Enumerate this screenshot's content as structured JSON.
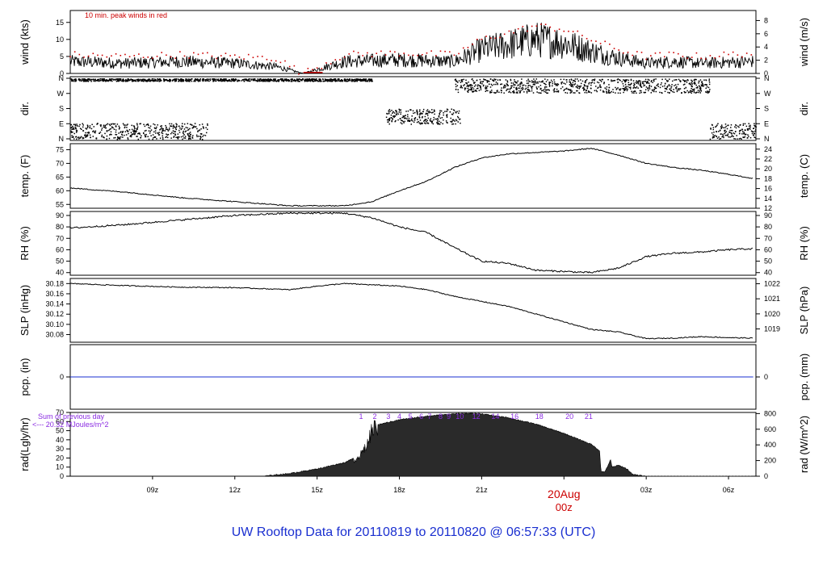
{
  "footer_title": "UW Rooftop Data for 20110819  to  20110820 @ 06:57:33  (UTC)",
  "colors": {
    "axis": "#000000",
    "peak": "#cc0000",
    "rain_line": "#1a2fd0",
    "hour_labels": "#8a2be2",
    "date_label": "#cc0000",
    "title": "#1a2fd0"
  },
  "chart_data": [
    {
      "type": "line",
      "panel": "wind",
      "ylabel": "wind (kts)",
      "ylabel_right": "wind (m/s)",
      "annotation": "10 min. peak winds in red",
      "ylim": [
        0,
        18.5
      ],
      "yticks": [
        "0",
        "5",
        "10",
        "15"
      ],
      "yticks_right": [
        "0",
        "2",
        "4",
        "6",
        "8"
      ],
      "x_hours": [
        6,
        8,
        10,
        12,
        13.5,
        14.5,
        16,
        18,
        20,
        21,
        22,
        23,
        24,
        25,
        26,
        27,
        28,
        29,
        30.9
      ],
      "values": [
        3.5,
        3,
        3.5,
        3,
        2,
        0,
        3.5,
        4,
        3.5,
        7,
        8.5,
        10,
        9,
        6.5,
        4.5,
        3,
        3.5,
        3,
        3.5
      ],
      "peak_values": [
        5.5,
        5,
        5.5,
        5,
        4.5,
        0,
        5.5,
        6,
        5.5,
        10,
        12,
        14,
        13,
        10,
        7,
        5,
        5.5,
        5,
        6
      ]
    },
    {
      "type": "scatter",
      "panel": "dir",
      "ylabel": "dir.",
      "ylabel_right": "dir.",
      "yticks": [
        "N",
        "W",
        "S",
        "E",
        "N"
      ],
      "segments": [
        {
          "x_range": [
            6,
            11
          ],
          "directions": [
            "E",
            "N"
          ]
        },
        {
          "x_range": [
            6,
            17
          ],
          "directions": [
            "N"
          ]
        },
        {
          "x_range": [
            17.5,
            20.2
          ],
          "directions": [
            "E",
            "S"
          ]
        },
        {
          "x_range": [
            20,
            29.3
          ],
          "directions": [
            "N",
            "W"
          ]
        },
        {
          "x_range": [
            29.3,
            31
          ],
          "directions": [
            "E",
            "N"
          ]
        }
      ]
    },
    {
      "type": "line",
      "panel": "temp",
      "ylabel": "temp. (F)",
      "ylabel_right": "temp. (C)",
      "ylim": [
        53.6,
        77.2
      ],
      "yticks": [
        "55",
        "60",
        "65",
        "70",
        "75"
      ],
      "yticks_right": [
        "12",
        "14",
        "16",
        "18",
        "20",
        "22",
        "24"
      ],
      "x_hours": [
        6,
        8,
        10,
        12,
        14,
        16,
        17,
        18,
        19,
        20,
        21,
        22,
        23,
        24,
        25,
        26,
        27,
        28,
        29,
        30,
        30.9
      ],
      "values": [
        61,
        59.5,
        57.5,
        56,
        54.5,
        54.5,
        56,
        60,
        63.5,
        68.5,
        72,
        73.5,
        74,
        74.5,
        75.5,
        73,
        70,
        68.5,
        67.5,
        66,
        64.5
      ]
    },
    {
      "type": "line",
      "panel": "rh",
      "ylabel": "RH (%)",
      "ylabel_right": "RH (%)",
      "ylim": [
        37.7,
        93.5
      ],
      "yticks": [
        "40",
        "50",
        "60",
        "70",
        "80",
        "90"
      ],
      "yticks_right": [
        "40",
        "50",
        "60",
        "70",
        "80",
        "90"
      ],
      "x_hours": [
        6,
        8,
        10,
        12,
        14,
        16,
        17,
        18,
        19,
        20,
        21,
        22,
        23,
        24,
        25,
        26,
        27,
        28,
        29,
        30,
        30.9
      ],
      "values": [
        79,
        82,
        86,
        90,
        92,
        92,
        88,
        80,
        75,
        62,
        50,
        48,
        42,
        41,
        40,
        44,
        54,
        57,
        58,
        60,
        61
      ]
    },
    {
      "type": "line",
      "panel": "slp",
      "ylabel": "SLP (inHg)",
      "ylabel_right": "SLP (hPa)",
      "ylim": [
        30.065,
        30.19
      ],
      "yticks": [
        "30.08",
        "30.10",
        "30.12",
        "30.14",
        "30.16",
        "30.18"
      ],
      "yticks_right": [
        "1019",
        "1020",
        "1021",
        "1022"
      ],
      "x_hours": [
        6,
        8,
        10,
        12,
        14,
        15,
        16,
        18,
        19,
        20,
        21,
        22,
        23,
        24,
        25,
        26,
        27,
        28,
        29,
        30,
        30.9
      ],
      "values": [
        30.18,
        30.176,
        30.173,
        30.172,
        30.168,
        30.175,
        30.18,
        30.175,
        30.168,
        30.155,
        30.145,
        30.135,
        30.12,
        30.105,
        30.09,
        30.085,
        30.072,
        30.073,
        30.076,
        30.074,
        30.073
      ]
    },
    {
      "type": "line",
      "panel": "pcp",
      "ylabel": "pcp. (in)",
      "ylabel_right": "pcp. (mm)",
      "yticks": [
        "0"
      ],
      "yticks_right": [
        "0"
      ],
      "x_hours": [
        6,
        30.9
      ],
      "values": [
        0,
        0
      ]
    },
    {
      "type": "area",
      "panel": "rad",
      "ylabel": "rad(Lgly/hr)",
      "ylabel_right": "rad (W/m^2)",
      "ylim": [
        0,
        70
      ],
      "yticks": [
        "0",
        "10",
        "20",
        "30",
        "40",
        "50",
        "60",
        "70"
      ],
      "yticks_right": [
        "0",
        "200",
        "400",
        "600",
        "800"
      ],
      "sum_label_1": "Sum of previous day",
      "sum_label_2": "<--- 20.32 MJoules/m^2",
      "hour_labels": [
        "1",
        "2",
        "3",
        "4",
        "5",
        "6",
        "7",
        "8",
        "9",
        "10",
        "12",
        "14",
        "16",
        "18",
        "20",
        "21"
      ],
      "hour_label_x": [
        16.6,
        17.1,
        17.6,
        18.0,
        18.4,
        18.8,
        19.1,
        19.5,
        19.8,
        20.2,
        20.8,
        21.5,
        22.2,
        23.1,
        24.2,
        24.9
      ],
      "x_hours": [
        13,
        14,
        15,
        16,
        16.5,
        16.8,
        17,
        18,
        19,
        20,
        20.7,
        21,
        22,
        23,
        24,
        25,
        25.3,
        25.35,
        25.5,
        25.7,
        25.75,
        26,
        26.3,
        26.5,
        27
      ],
      "values": [
        0,
        3,
        8,
        15,
        22,
        35,
        55,
        62,
        66,
        68.5,
        69,
        68.5,
        64,
        57,
        47,
        35,
        28,
        5,
        5,
        18,
        10,
        12,
        8,
        2,
        0
      ]
    }
  ],
  "x_axis": {
    "ticks": [
      "09z",
      "12z",
      "15z",
      "18z",
      "21z",
      "03z",
      "06z"
    ],
    "tick_hours": [
      9,
      12,
      15,
      18,
      21,
      27,
      30
    ],
    "date_label": "20Aug",
    "date_sub_label": "00z",
    "date_hour": 24,
    "range": [
      6,
      31
    ]
  }
}
